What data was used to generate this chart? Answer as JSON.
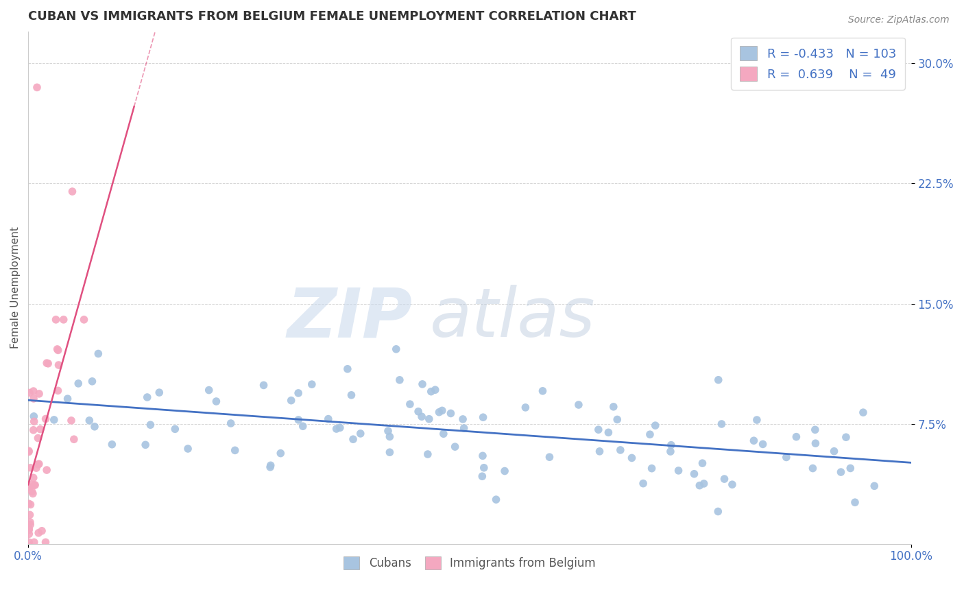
{
  "title": "CUBAN VS IMMIGRANTS FROM BELGIUM FEMALE UNEMPLOYMENT CORRELATION CHART",
  "source_text": "Source: ZipAtlas.com",
  "ylabel": "Female Unemployment",
  "xlim": [
    0,
    100
  ],
  "ylim": [
    0,
    32
  ],
  "yticks": [
    7.5,
    15.0,
    22.5,
    30.0
  ],
  "ytick_labels": [
    "7.5%",
    "15.0%",
    "22.5%",
    "30.0%"
  ],
  "xtick_labels": [
    "0.0%",
    "100.0%"
  ],
  "cubans_color": "#a8c4e0",
  "belgians_color": "#f4a8c0",
  "cubans_line_color": "#4472c4",
  "belgians_line_color": "#e05080",
  "legend_R_cubans": "-0.433",
  "legend_N_cubans": "103",
  "legend_R_belgians": "0.639",
  "legend_N_belgians": "49",
  "legend_label_cubans": "Cubans",
  "legend_label_belgians": "Immigrants from Belgium",
  "watermark_zip": "ZIP",
  "watermark_atlas": "atlas",
  "background_color": "#ffffff",
  "grid_color": "#cccccc",
  "title_color": "#333333",
  "axis_label_color": "#4472c4",
  "cubans_R": -0.433,
  "belgians_R": 0.639,
  "cubans_N": 103,
  "belgians_N": 49,
  "title_fontsize": 13,
  "tick_fontsize": 12,
  "legend_fontsize": 13
}
